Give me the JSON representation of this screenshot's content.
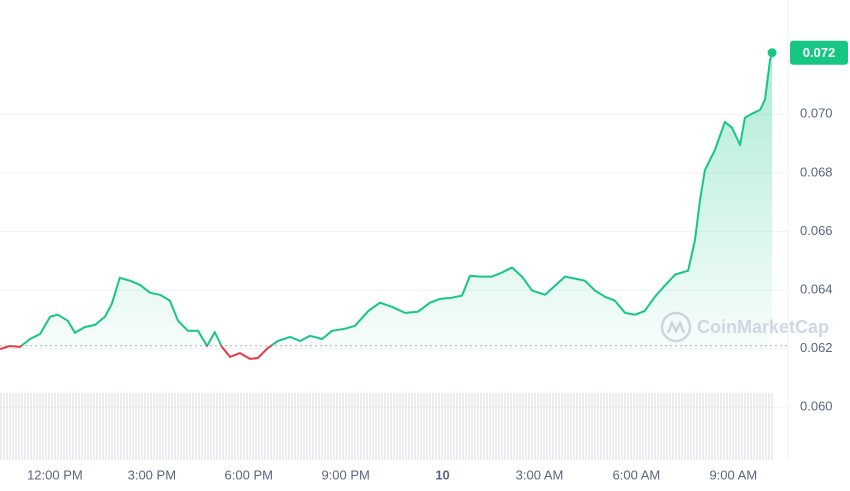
{
  "chart_data": {
    "type": "line",
    "x": [
      10.3,
      10.61,
      10.92,
      11.23,
      11.54,
      11.85,
      12.09,
      12.4,
      12.62,
      12.93,
      13.24,
      13.55,
      13.76,
      14.01,
      14.32,
      14.63,
      14.94,
      15.25,
      15.56,
      15.81,
      16.12,
      16.43,
      16.71,
      16.95,
      17.17,
      17.42,
      17.73,
      18.04,
      18.28,
      18.59,
      18.9,
      19.28,
      19.59,
      19.9,
      20.27,
      20.58,
      20.98,
      21.29,
      21.7,
      22.06,
      22.43,
      22.84,
      23.24,
      23.61,
      23.92,
      24.29,
      24.6,
      24.85,
      25.16,
      25.53,
      25.84,
      26.15,
      26.46,
      26.77,
      27.17,
      27.48,
      27.79,
      28.1,
      28.41,
      28.72,
      29.03,
      29.33,
      29.65,
      29.96,
      30.26,
      30.57,
      30.88,
      31.2,
      31.6,
      31.81,
      31.97,
      32.12,
      32.43,
      32.74,
      32.96,
      33.21,
      33.36,
      33.58,
      33.83,
      33.98,
      34.14,
      34.2
    ],
    "series": [
      {
        "color": "#16c784",
        "down_color": "#ea3943",
        "values": [
          0.06199,
          0.06209,
          0.06206,
          0.06233,
          0.0625,
          0.06309,
          0.06316,
          0.06295,
          0.06254,
          0.06274,
          0.06281,
          0.06309,
          0.06353,
          0.06442,
          0.06432,
          0.06418,
          0.06391,
          0.06384,
          0.06364,
          0.06295,
          0.06261,
          0.06261,
          0.06209,
          0.06257,
          0.06206,
          0.06172,
          0.06185,
          0.06165,
          0.06168,
          0.06202,
          0.06226,
          0.0624,
          0.06226,
          0.06244,
          0.06233,
          0.06261,
          0.06268,
          0.06278,
          0.06329,
          0.06357,
          0.06343,
          0.06322,
          0.06326,
          0.06357,
          0.0637,
          0.06374,
          0.06381,
          0.06449,
          0.06446,
          0.06446,
          0.0646,
          0.06477,
          0.06446,
          0.06398,
          0.06384,
          0.06415,
          0.06446,
          0.06439,
          0.06432,
          0.06398,
          0.06377,
          0.06364,
          0.06322,
          0.06316,
          0.06329,
          0.06377,
          0.06415,
          0.06453,
          0.06466,
          0.06569,
          0.06707,
          0.06809,
          0.06878,
          0.06974,
          0.06954,
          0.06895,
          0.06988,
          0.07002,
          0.07015,
          0.0705,
          0.07187,
          0.0721
        ]
      }
    ],
    "baseline": 0.0621,
    "last_price": {
      "value": 0.0721,
      "label": "0.072"
    },
    "xlim": [
      10.3,
      34.6
    ],
    "xticks": [
      {
        "value": 12,
        "label": "12:00 PM"
      },
      {
        "value": 15,
        "label": "3:00 PM"
      },
      {
        "value": 18,
        "label": "6:00 PM"
      },
      {
        "value": 21,
        "label": "9:00 PM"
      },
      {
        "value": 24,
        "label": "10"
      },
      {
        "value": 27,
        "label": "3:00 AM"
      },
      {
        "value": 30,
        "label": "6:00 AM"
      },
      {
        "value": 33,
        "label": "9:00 AM"
      }
    ],
    "ylim": [
      0.0582,
      0.0739
    ],
    "yticks": [
      {
        "value": 0.06,
        "label": "0.060"
      },
      {
        "value": 0.062,
        "label": "0.062"
      },
      {
        "value": 0.064,
        "label": "0.064"
      },
      {
        "value": 0.066,
        "label": "0.066"
      },
      {
        "value": 0.068,
        "label": "0.068"
      },
      {
        "value": 0.07,
        "label": "0.070"
      }
    ],
    "grid": true,
    "watermark": "CoinMarketCap"
  }
}
